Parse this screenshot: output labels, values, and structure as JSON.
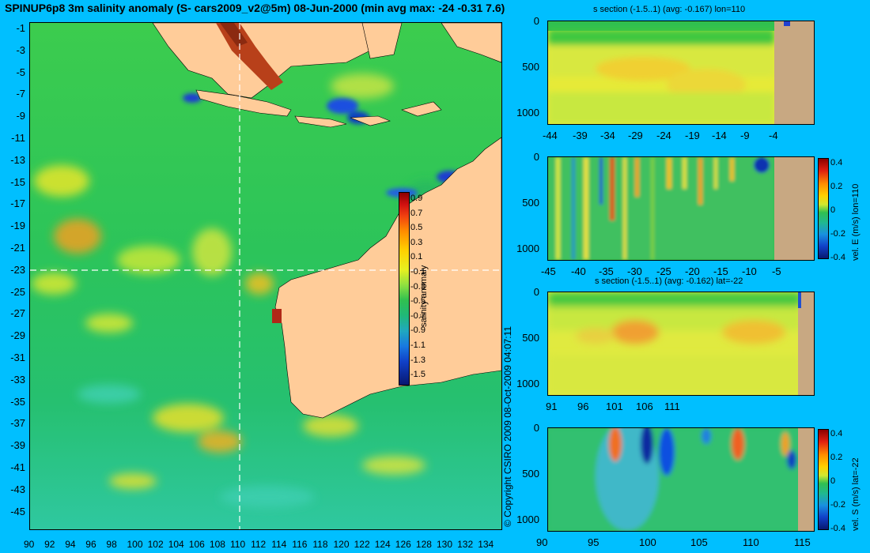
{
  "title": "SPINUP6p8 3m salinity anomaly (S- cars2009_v2@5m) 08-Jun-2000 (min avg max: -24 -0.31 7.6)",
  "copyright": "© Copyright CSIRO 2009  08-Oct-2009 04:07:11",
  "map": {
    "lat_ticks": [
      "-1",
      "-3",
      "-5",
      "-7",
      "-9",
      "-11",
      "-13",
      "-15",
      "-17",
      "-19",
      "-21",
      "-23",
      "-25",
      "-27",
      "-29",
      "-31",
      "-33",
      "-35",
      "-37",
      "-39",
      "-41",
      "-43",
      "-45"
    ],
    "lon_ticks": [
      "90",
      "92",
      "94",
      "96",
      "98",
      "100",
      "102",
      "104",
      "106",
      "108",
      "110",
      "112",
      "114",
      "116",
      "118",
      "120",
      "122",
      "124",
      "126",
      "128",
      "130",
      "132",
      "134"
    ],
    "section_lon": 110,
    "section_lat": -22,
    "colorbar": {
      "label": "salinity anomaly",
      "ticks": [
        "0.9",
        "0.7",
        "0.5",
        "0.3",
        "0.1",
        "-0.1",
        "-0.3",
        "-0.5",
        "-0.7",
        "-0.9",
        "-1.1",
        "-1.3",
        "-1.5"
      ]
    }
  },
  "panels": [
    {
      "title": "s section (-1.5..1) (avg: -0.167) lon=110",
      "y_ticks": [
        "0",
        "500",
        "1000"
      ],
      "x_ticks": [
        "-44",
        "-39",
        "-34",
        "-29",
        "-24",
        "-19",
        "-14",
        "-9",
        "-4"
      ],
      "cb_label": "",
      "cb_ticks": []
    },
    {
      "title": "",
      "y_ticks": [
        "0",
        "500",
        "1000"
      ],
      "x_ticks": [
        "-45",
        "-40",
        "-35",
        "-30",
        "-25",
        "-20",
        "-15",
        "-10",
        "-5"
      ],
      "cb_label": "vel. E (m/s) lon=110",
      "cb_ticks": [
        "0.4",
        "0.2",
        "0",
        "-0.2",
        "-0.4"
      ]
    },
    {
      "title": "s section (-1.5..1) (avg: -0.162) lat=-22",
      "y_ticks": [
        "0",
        "500",
        "1000"
      ],
      "x_ticks": [
        "91",
        "96",
        "101",
        "106",
        "111"
      ],
      "cb_label": "",
      "cb_ticks": []
    },
    {
      "title": "",
      "y_ticks": [
        "0",
        "500",
        "1000"
      ],
      "x_ticks": [
        "90",
        "95",
        "100",
        "105",
        "110",
        "115"
      ],
      "cb_label": "vel. S (m/s) lat=-22",
      "cb_ticks": [
        "0.4",
        "0.2",
        "0",
        "-0.2",
        "-0.4"
      ]
    }
  ],
  "colors": {
    "background": "#00bfff",
    "land": "#ffcc99",
    "section_land": "#c8a882",
    "ocean_mid": "#22c25a"
  }
}
